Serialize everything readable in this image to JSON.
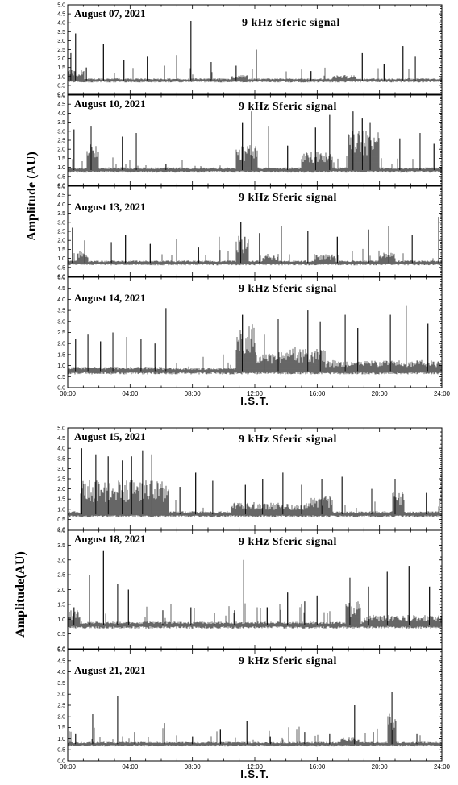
{
  "chart_data": [
    {
      "type": "line",
      "group": "top",
      "panel_name": "aug-07",
      "date_label": "August 07, 2021",
      "title": "9 kHz Sferic signal",
      "ylabel": "Amplitude (AU)",
      "xlabel": "",
      "xlim": [
        "00:00",
        "24:00"
      ],
      "ylim": [
        0.0,
        5.0
      ],
      "baseline": 0.78,
      "noise": 0.08,
      "bursts": [
        {
          "from": 0.0,
          "to": 1.0,
          "level": 0.6
        },
        {
          "from": 10.5,
          "to": 11.5,
          "level": 0.3
        },
        {
          "from": 17.0,
          "to": 18.5,
          "level": 0.3
        }
      ],
      "spikes": [
        {
          "x": 0.2,
          "y": 2.3
        },
        {
          "x": 0.5,
          "y": 3.4
        },
        {
          "x": 1.2,
          "y": 1.5
        },
        {
          "x": 2.3,
          "y": 2.8
        },
        {
          "x": 3.6,
          "y": 1.9
        },
        {
          "x": 5.1,
          "y": 2.1
        },
        {
          "x": 6.2,
          "y": 1.6
        },
        {
          "x": 7.0,
          "y": 2.2
        },
        {
          "x": 7.9,
          "y": 4.1
        },
        {
          "x": 9.2,
          "y": 1.8
        },
        {
          "x": 10.8,
          "y": 1.6
        },
        {
          "x": 12.1,
          "y": 2.5
        },
        {
          "x": 15.6,
          "y": 1.3
        },
        {
          "x": 18.9,
          "y": 2.3
        },
        {
          "x": 20.3,
          "y": 1.7
        },
        {
          "x": 21.5,
          "y": 2.7
        },
        {
          "x": 22.3,
          "y": 2.1
        }
      ]
    },
    {
      "type": "line",
      "group": "top",
      "panel_name": "aug-10",
      "date_label": "August 10, 2021",
      "title": "9 kHz Sferic signal",
      "ylabel": "Amplitude (AU)",
      "xlabel": "",
      "xlim": [
        "00:00",
        "24:00"
      ],
      "ylim": [
        0.0,
        5.0
      ],
      "baseline": 0.85,
      "noise": 0.1,
      "bursts": [
        {
          "from": 1.2,
          "to": 2.0,
          "level": 1.7
        },
        {
          "from": 10.8,
          "to": 12.2,
          "level": 1.4
        },
        {
          "from": 15.0,
          "to": 17.0,
          "level": 1.0
        },
        {
          "from": 18.0,
          "to": 20.0,
          "level": 2.2
        }
      ],
      "spikes": [
        {
          "x": 0.4,
          "y": 3.1
        },
        {
          "x": 1.5,
          "y": 3.3
        },
        {
          "x": 3.5,
          "y": 2.7
        },
        {
          "x": 4.4,
          "y": 2.9
        },
        {
          "x": 6.3,
          "y": 1.2
        },
        {
          "x": 11.2,
          "y": 3.5
        },
        {
          "x": 11.8,
          "y": 4.1
        },
        {
          "x": 12.9,
          "y": 3.3
        },
        {
          "x": 14.1,
          "y": 2.2
        },
        {
          "x": 15.9,
          "y": 3.2
        },
        {
          "x": 16.8,
          "y": 3.9
        },
        {
          "x": 18.3,
          "y": 4.1
        },
        {
          "x": 18.9,
          "y": 3.7
        },
        {
          "x": 19.4,
          "y": 3.5
        },
        {
          "x": 21.3,
          "y": 2.6
        },
        {
          "x": 22.6,
          "y": 2.9
        },
        {
          "x": 23.5,
          "y": 2.3
        }
      ]
    },
    {
      "type": "line",
      "group": "top",
      "panel_name": "aug-13",
      "date_label": "August 13, 2021",
      "title": "9 kHz Sferic signal",
      "ylabel": "Amplitude (AU)",
      "xlabel": "",
      "xlim": [
        "00:00",
        "24:00"
      ],
      "ylim": [
        0.0,
        5.0
      ],
      "baseline": 0.75,
      "noise": 0.09,
      "bursts": [
        {
          "from": 0.6,
          "to": 1.3,
          "level": 0.7
        },
        {
          "from": 10.8,
          "to": 11.6,
          "level": 1.5
        },
        {
          "from": 12.5,
          "to": 13.5,
          "level": 0.5
        },
        {
          "from": 15.8,
          "to": 17.2,
          "level": 0.5
        },
        {
          "from": 20.0,
          "to": 21.0,
          "level": 0.6
        }
      ],
      "spikes": [
        {
          "x": 0.3,
          "y": 2.7
        },
        {
          "x": 1.1,
          "y": 2.0
        },
        {
          "x": 2.8,
          "y": 1.9
        },
        {
          "x": 3.7,
          "y": 2.3
        },
        {
          "x": 5.3,
          "y": 1.8
        },
        {
          "x": 7.0,
          "y": 2.1
        },
        {
          "x": 8.4,
          "y": 1.6
        },
        {
          "x": 9.7,
          "y": 2.2
        },
        {
          "x": 11.1,
          "y": 3.0
        },
        {
          "x": 12.3,
          "y": 2.4
        },
        {
          "x": 13.7,
          "y": 2.8
        },
        {
          "x": 15.4,
          "y": 2.5
        },
        {
          "x": 17.3,
          "y": 2.2
        },
        {
          "x": 19.3,
          "y": 2.6
        },
        {
          "x": 20.6,
          "y": 2.8
        },
        {
          "x": 22.1,
          "y": 2.3
        },
        {
          "x": 23.8,
          "y": 3.3
        }
      ]
    },
    {
      "type": "line",
      "group": "top",
      "panel_name": "aug-14",
      "date_label": "August 14, 2021",
      "title": "9 kHz Sferic signal",
      "ylabel": "Amplitude (AU)",
      "xlabel": "I.S.T.",
      "xlim": [
        "00:00",
        "24:00"
      ],
      "ylim": [
        0.0,
        5.0
      ],
      "xticks": [
        "00:00",
        "04:00",
        "08:00",
        "12:00",
        "16:00",
        "20:00",
        "24:00"
      ],
      "baseline": 0.75,
      "noise": 0.1,
      "bursts": [
        {
          "from": 0.0,
          "to": 6.0,
          "level": 0.2
        },
        {
          "from": 10.8,
          "to": 12.0,
          "level": 2.2
        },
        {
          "from": 12.0,
          "to": 14.0,
          "level": 0.9
        },
        {
          "from": 14.0,
          "to": 16.5,
          "level": 1.1
        },
        {
          "from": 16.5,
          "to": 24.0,
          "level": 0.5
        }
      ],
      "spikes": [
        {
          "x": 0.5,
          "y": 2.2
        },
        {
          "x": 1.3,
          "y": 2.4
        },
        {
          "x": 2.1,
          "y": 2.1
        },
        {
          "x": 2.9,
          "y": 2.5
        },
        {
          "x": 3.8,
          "y": 2.3
        },
        {
          "x": 4.7,
          "y": 2.2
        },
        {
          "x": 5.6,
          "y": 2.0
        },
        {
          "x": 6.3,
          "y": 3.6
        },
        {
          "x": 11.2,
          "y": 3.3
        },
        {
          "x": 12.6,
          "y": 2.4
        },
        {
          "x": 13.5,
          "y": 3.1
        },
        {
          "x": 15.4,
          "y": 3.5
        },
        {
          "x": 16.2,
          "y": 3.0
        },
        {
          "x": 17.8,
          "y": 3.3
        },
        {
          "x": 18.6,
          "y": 2.7
        },
        {
          "x": 20.7,
          "y": 3.3
        },
        {
          "x": 21.7,
          "y": 3.7
        },
        {
          "x": 23.1,
          "y": 2.9
        }
      ]
    },
    {
      "type": "line",
      "group": "bottom",
      "panel_name": "aug-15",
      "date_label": "August 15, 2021",
      "title": "9 kHz Sferic signal",
      "ylabel": "Amplitude(AU)",
      "xlabel": "",
      "xlim": [
        "00:00",
        "24:00"
      ],
      "ylim": [
        0.0,
        5.0
      ],
      "baseline": 0.75,
      "noise": 0.1,
      "bursts": [
        {
          "from": 0.8,
          "to": 6.5,
          "level": 1.7
        },
        {
          "from": 10.5,
          "to": 15.5,
          "level": 0.6
        },
        {
          "from": 15.5,
          "to": 17.0,
          "level": 0.9
        },
        {
          "from": 20.8,
          "to": 21.6,
          "level": 1.2
        }
      ],
      "spikes": [
        {
          "x": 0.9,
          "y": 4.0
        },
        {
          "x": 1.8,
          "y": 3.7
        },
        {
          "x": 2.6,
          "y": 3.6
        },
        {
          "x": 3.5,
          "y": 3.4
        },
        {
          "x": 4.1,
          "y": 3.6
        },
        {
          "x": 4.8,
          "y": 3.9
        },
        {
          "x": 5.4,
          "y": 3.7
        },
        {
          "x": 7.2,
          "y": 2.1
        },
        {
          "x": 8.2,
          "y": 2.8
        },
        {
          "x": 9.3,
          "y": 2.4
        },
        {
          "x": 11.4,
          "y": 2.2
        },
        {
          "x": 12.5,
          "y": 2.5
        },
        {
          "x": 13.8,
          "y": 2.8
        },
        {
          "x": 15.0,
          "y": 2.2
        },
        {
          "x": 16.3,
          "y": 2.5
        },
        {
          "x": 17.6,
          "y": 2.6
        },
        {
          "x": 19.5,
          "y": 2.0
        },
        {
          "x": 21.0,
          "y": 2.5
        },
        {
          "x": 23.0,
          "y": 1.8
        }
      ]
    },
    {
      "type": "line",
      "group": "bottom",
      "panel_name": "aug-18",
      "date_label": "August 18, 2021",
      "title": "9 kHz Sferic signal",
      "ylabel": "Amplitude(AU)",
      "xlabel": "",
      "xlim": [
        "00:00",
        "24:00"
      ],
      "ylim": [
        0.0,
        4.0
      ],
      "baseline": 0.8,
      "noise": 0.08,
      "bursts": [
        {
          "from": 0.0,
          "to": 0.8,
          "level": 0.5
        },
        {
          "from": 17.8,
          "to": 18.8,
          "level": 0.8
        },
        {
          "from": 19.0,
          "to": 24.0,
          "level": 0.35
        }
      ],
      "spikes": [
        {
          "x": 0.4,
          "y": 1.4
        },
        {
          "x": 1.4,
          "y": 2.5
        },
        {
          "x": 2.3,
          "y": 3.3
        },
        {
          "x": 3.2,
          "y": 2.2
        },
        {
          "x": 3.9,
          "y": 2.0
        },
        {
          "x": 6.1,
          "y": 1.3
        },
        {
          "x": 7.9,
          "y": 1.4
        },
        {
          "x": 9.4,
          "y": 1.2
        },
        {
          "x": 10.7,
          "y": 1.3
        },
        {
          "x": 11.3,
          "y": 3.0
        },
        {
          "x": 12.8,
          "y": 1.4
        },
        {
          "x": 14.1,
          "y": 1.9
        },
        {
          "x": 15.2,
          "y": 1.6
        },
        {
          "x": 16.0,
          "y": 1.8
        },
        {
          "x": 18.1,
          "y": 2.4
        },
        {
          "x": 19.3,
          "y": 2.1
        },
        {
          "x": 20.5,
          "y": 2.6
        },
        {
          "x": 21.9,
          "y": 2.8
        },
        {
          "x": 23.2,
          "y": 2.1
        }
      ]
    },
    {
      "type": "line",
      "group": "bottom",
      "panel_name": "aug-21",
      "date_label": "August 21, 2021",
      "title": "9 kHz Sferic signal",
      "ylabel": "Amplitude(AU)",
      "xlabel": "I.S.T.",
      "xlim": [
        "00:00",
        "24:00"
      ],
      "ylim": [
        0.0,
        5.0
      ],
      "xticks": [
        "00:00",
        "04:00",
        "08:00",
        "12:00",
        "16:00",
        "20:00",
        "24:00"
      ],
      "baseline": 0.75,
      "noise": 0.07,
      "bursts": [
        {
          "from": 17.5,
          "to": 18.7,
          "level": 0.3
        },
        {
          "from": 20.5,
          "to": 21.1,
          "level": 1.4
        }
      ],
      "spikes": [
        {
          "x": 0.5,
          "y": 1.2
        },
        {
          "x": 1.6,
          "y": 2.1
        },
        {
          "x": 3.2,
          "y": 2.9
        },
        {
          "x": 4.3,
          "y": 1.3
        },
        {
          "x": 6.2,
          "y": 1.7
        },
        {
          "x": 8.0,
          "y": 1.1
        },
        {
          "x": 9.8,
          "y": 1.4
        },
        {
          "x": 11.5,
          "y": 1.8
        },
        {
          "x": 13.0,
          "y": 1.1
        },
        {
          "x": 15.2,
          "y": 1.3
        },
        {
          "x": 16.8,
          "y": 1.2
        },
        {
          "x": 18.4,
          "y": 2.5
        },
        {
          "x": 19.6,
          "y": 1.3
        },
        {
          "x": 20.8,
          "y": 3.1
        },
        {
          "x": 22.4,
          "y": 1.2
        }
      ]
    }
  ],
  "groups": {
    "top": {
      "ylabel": "Amplitude (AU)",
      "xlabel": "I.S.T."
    },
    "bottom": {
      "ylabel": "Amplitude(AU)",
      "xlabel": "I.S.T."
    }
  }
}
